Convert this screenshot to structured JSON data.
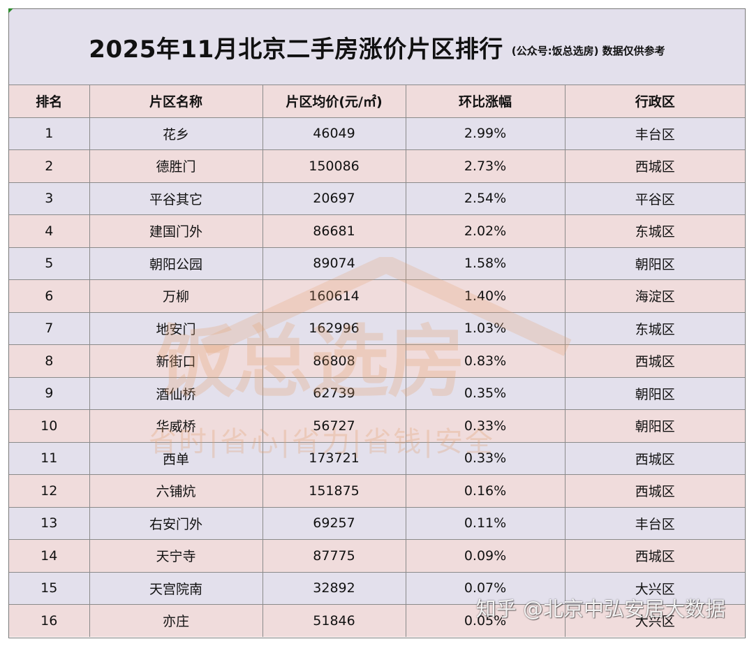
{
  "title": {
    "main": "2025年11月北京二手房涨价片区排行",
    "sub": "(公众号:饭总选房) 数据仅供参考"
  },
  "table": {
    "headers": [
      "排名",
      "片区名称",
      "片区均价(元/㎡)",
      "环比涨幅",
      "行政区"
    ],
    "rows": [
      [
        "1",
        "花乡",
        "46049",
        "2.99%",
        "丰台区"
      ],
      [
        "2",
        "德胜门",
        "150086",
        "2.73%",
        "西城区"
      ],
      [
        "3",
        "平谷其它",
        "20697",
        "2.54%",
        "平谷区"
      ],
      [
        "4",
        "建国门外",
        "86681",
        "2.02%",
        "东城区"
      ],
      [
        "5",
        "朝阳公园",
        "89074",
        "1.58%",
        "朝阳区"
      ],
      [
        "6",
        "万柳",
        "160614",
        "1.40%",
        "海淀区"
      ],
      [
        "7",
        "地安门",
        "162996",
        "1.03%",
        "东城区"
      ],
      [
        "8",
        "新街口",
        "86808",
        "0.83%",
        "西城区"
      ],
      [
        "9",
        "酒仙桥",
        "62739",
        "0.35%",
        "朝阳区"
      ],
      [
        "10",
        "华威桥",
        "56727",
        "0.33%",
        "朝阳区"
      ],
      [
        "11",
        "西单",
        "173721",
        "0.33%",
        "西城区"
      ],
      [
        "12",
        "六铺炕",
        "151875",
        "0.16%",
        "西城区"
      ],
      [
        "13",
        "右安门外",
        "69257",
        "0.11%",
        "丰台区"
      ],
      [
        "14",
        "天宁寺",
        "87775",
        "0.09%",
        "西城区"
      ],
      [
        "15",
        "天宫院南",
        "32892",
        "0.07%",
        "大兴区"
      ],
      [
        "16",
        "亦庄",
        "51846",
        "0.05%",
        "大兴区"
      ]
    ]
  },
  "watermark": {
    "logo": "饭总选房",
    "slogan": "省时|省心|省力|省钱|安全",
    "source": "知乎 @北京中弘安居大数据"
  },
  "colors": {
    "title_bg": "#e3e0ec",
    "row_lavender": "#e3e0ec",
    "row_pink": "#f0dcdc",
    "watermark_orange": "#e2a06e"
  }
}
